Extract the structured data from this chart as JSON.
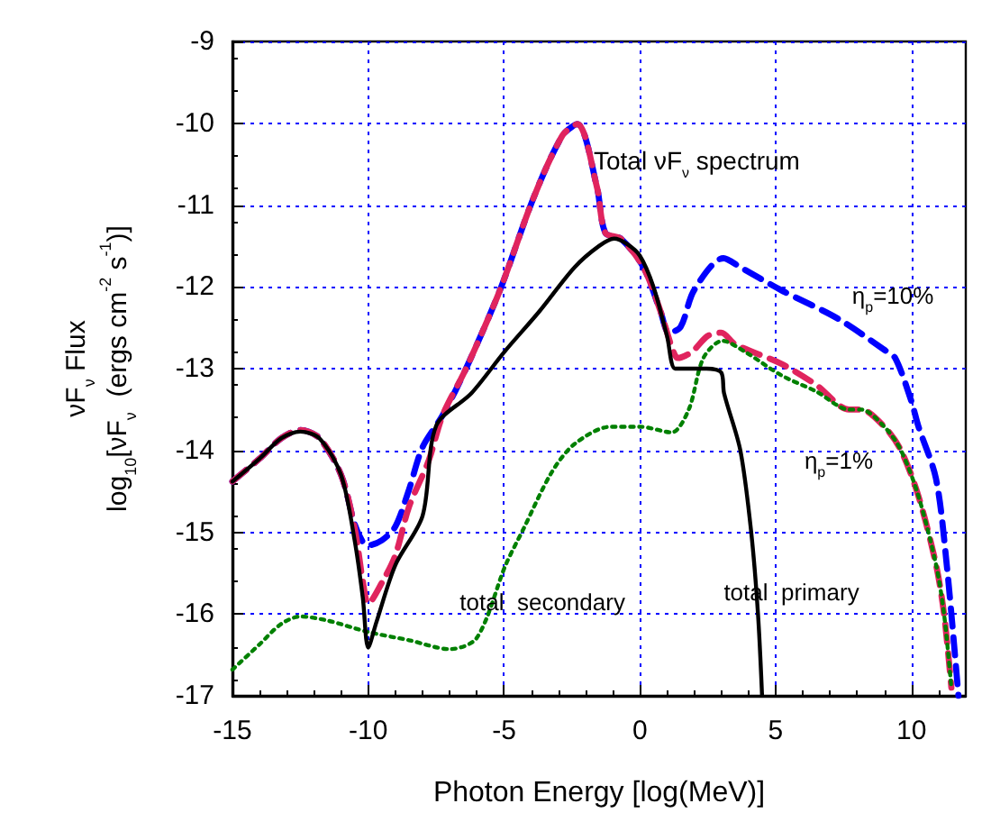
{
  "chart_data": {
    "type": "line",
    "xlabel": "Photon Energy [log(MeV)]",
    "ylabel": "νF$_{ν}$ Flux\nlog$_{10}$[νF$_{ν}$  (ergs cm$^{-2}$ s$^{-1}$)]",
    "xlim": [
      -15,
      12
    ],
    "ylim": [
      -17,
      -9
    ],
    "xticks": [
      -15,
      -10,
      -5,
      0,
      5,
      10
    ],
    "yticks": [
      -17,
      -16,
      -15,
      -14,
      -13,
      -12,
      -11,
      -10,
      -9
    ],
    "grid": true,
    "marker": "none",
    "series": [
      {
        "color": "#000000",
        "line_style": "solid",
        "x": [
          -15,
          -14,
          -13.2,
          -12.5,
          -11.8,
          -11,
          -10.5,
          -10.2,
          -10,
          -9.7,
          -9,
          -8,
          -7.5,
          -6.2,
          -5,
          -3.7,
          -2.4,
          -1.5,
          -0.95,
          -0.5,
          0,
          0.5,
          1,
          1.3,
          1.8,
          2.45,
          3,
          3.1,
          3.7,
          4.1,
          4.35,
          4.5
        ],
        "values": [
          -14.38,
          -14.1,
          -13.85,
          -13.77,
          -13.85,
          -14.3,
          -15.1,
          -15.8,
          -16.41,
          -16.1,
          -15.4,
          -14.8,
          -13.7,
          -13.3,
          -12.8,
          -12.3,
          -11.76,
          -11.5,
          -11.41,
          -11.47,
          -11.62,
          -12,
          -12.6,
          -13.0,
          -13.0,
          -13.0,
          -13.05,
          -13.3,
          -14.0,
          -15.0,
          -16.0,
          -17.0
        ]
      },
      {
        "color": "#008000",
        "line_style": "dotted",
        "x": [
          -15,
          -14,
          -13.2,
          -12.5,
          -11.5,
          -10,
          -8.5,
          -7,
          -6,
          -4.94,
          -4.3,
          -3.25,
          -2.4,
          -1.08,
          0,
          1.17,
          1.8,
          2.34,
          3.04,
          3.9,
          5.2,
          6.5,
          7.7,
          8.15,
          9,
          9.6,
          10.25,
          10.9,
          11.2,
          11.47
        ],
        "values": [
          -16.68,
          -16.37,
          -16.12,
          -16.03,
          -16.08,
          -16.22,
          -16.32,
          -16.43,
          -16.29,
          -15.4,
          -14.97,
          -14.27,
          -13.92,
          -13.71,
          -13.71,
          -13.78,
          -13.5,
          -12.87,
          -12.66,
          -12.8,
          -13.08,
          -13.28,
          -13.5,
          -13.5,
          -13.71,
          -13.99,
          -14.55,
          -15.39,
          -16.0,
          -16.9
        ]
      },
      {
        "color": "#e0245e",
        "line_style": "dashed",
        "x": [
          -15,
          -14,
          -13.2,
          -12.5,
          -11.8,
          -11,
          -10.5,
          -10.2,
          -10,
          -9.47,
          -9,
          -8.5,
          -7.78,
          -7.26,
          -6.4,
          -5.15,
          -3.9,
          -2.85,
          -2.3,
          -1.58,
          -1.27,
          -0.7,
          0.13,
          0.76,
          1.17,
          1.4,
          1.9,
          2.5,
          3.0,
          3.5,
          5.2,
          6.5,
          7.7,
          8.15,
          9,
          9.6,
          10.25,
          10.9,
          11.2,
          11.47
        ],
        "values": [
          -14.38,
          -14.1,
          -13.85,
          -13.75,
          -13.85,
          -14.3,
          -14.95,
          -15.6,
          -15.87,
          -15.6,
          -15.28,
          -14.69,
          -14.13,
          -13.57,
          -13.0,
          -12.04,
          -10.9,
          -10.15,
          -10.01,
          -10.78,
          -11.34,
          -11.41,
          -11.76,
          -12.3,
          -12.73,
          -12.87,
          -12.8,
          -12.6,
          -12.56,
          -12.7,
          -12.94,
          -13.2,
          -13.5,
          -13.5,
          -13.71,
          -13.99,
          -14.55,
          -15.39,
          -16.0,
          -16.9
        ]
      },
      {
        "color": "#0000ff",
        "line_style": "dashed",
        "x": [
          -15,
          -14,
          -13.2,
          -12.5,
          -11.8,
          -11,
          -10.5,
          -10.2,
          -10,
          -9.5,
          -9,
          -8.5,
          -8,
          -7.26,
          -6.4,
          -5.15,
          -3.9,
          -2.85,
          -2.3,
          -1.58,
          -1.27,
          -0.7,
          0.13,
          0.76,
          1.07,
          1.5,
          2.0,
          3.08,
          3.7,
          5.2,
          7.3,
          9.0,
          9.4,
          10.0,
          10.25,
          10.9,
          11.3,
          11.73
        ],
        "values": [
          -14.38,
          -14.1,
          -13.85,
          -13.75,
          -13.85,
          -14.3,
          -14.9,
          -15.12,
          -15.16,
          -15.1,
          -14.93,
          -14.48,
          -13.96,
          -13.57,
          -13.0,
          -12.04,
          -10.9,
          -10.15,
          -10.01,
          -10.78,
          -11.34,
          -11.41,
          -11.76,
          -12.3,
          -12.56,
          -12.49,
          -12.04,
          -11.65,
          -11.76,
          -12.04,
          -12.39,
          -12.77,
          -12.87,
          -13.4,
          -13.7,
          -14.34,
          -15.4,
          -17.0
        ]
      }
    ],
    "annotations": [
      {
        "text": "Total νF$_{ν}$ spectrum",
        "x": -1.7,
        "y": -10.45
      },
      "η$_{p}$=10%",
      "η$_{p}$=1%",
      "total  secondary",
      "total  primary"
    ]
  }
}
